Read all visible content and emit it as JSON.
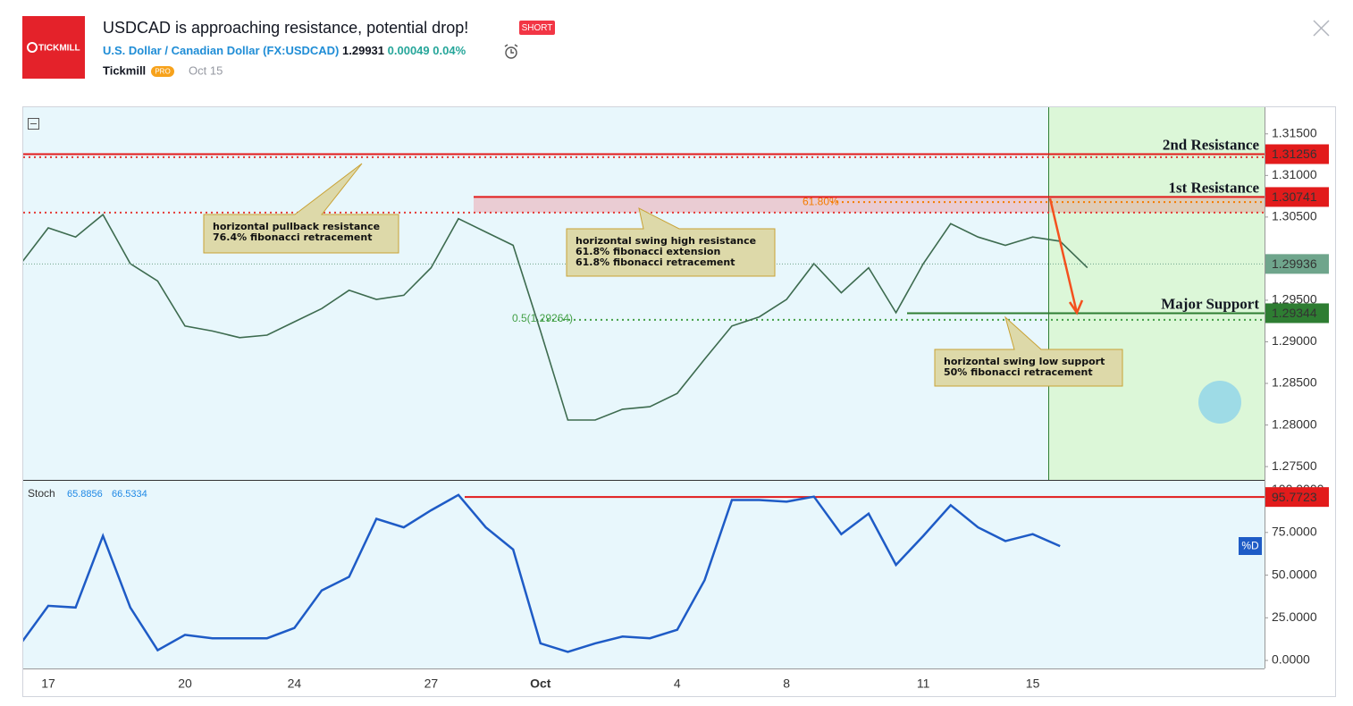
{
  "header": {
    "logo": "TICKMILL",
    "title": "USDCAD is approaching resistance, potential drop!",
    "badge": "SHORT",
    "symbol_name": "U.S. Dollar / Canadian Dollar",
    "symbol_code": "(FX:USDCAD)",
    "price": "1.29931",
    "change": "0.00049",
    "change_pct": "0.04%",
    "author": "Tickmill",
    "author_badge": "PRO",
    "date": "Oct 15"
  },
  "chart_data": [
    {
      "type": "line",
      "color": "#3d6b4f",
      "categories": [
        null,
        "17",
        null,
        null,
        null,
        null,
        "20",
        null,
        null,
        null,
        "24",
        null,
        null,
        null,
        null,
        "27",
        null,
        null,
        null,
        "Oct",
        null,
        null,
        null,
        null,
        "4",
        null,
        null,
        null,
        "8",
        null,
        null,
        null,
        null,
        "11",
        null,
        null,
        null,
        "15",
        null,
        null,
        null,
        null,
        null,
        null,
        null,
        null
      ],
      "values": [
        1.2994,
        1.3037,
        1.3026,
        1.3053,
        1.2994,
        1.2973,
        1.2919,
        1.2913,
        1.2905,
        1.2908,
        1.2924,
        1.294,
        1.2962,
        1.2951,
        1.2956,
        1.2989,
        1.3048,
        1.3032,
        1.3016,
        1.2913,
        1.2806,
        1.2806,
        1.2819,
        1.2822,
        1.2838,
        1.2879,
        1.2919,
        1.293,
        1.2951,
        1.2994,
        1.2959,
        1.2989,
        1.2935,
        1.2994,
        1.3042,
        1.3026,
        1.3016,
        1.3026,
        1.3021,
        1.2989,
        null,
        null,
        null,
        null,
        null,
        null
      ],
      "ylim": [
        1.2734,
        1.3182
      ],
      "yticks": [
        {
          "value": 1.315,
          "label": "1.31500"
        },
        {
          "value": 1.31,
          "label": "1.31000"
        },
        {
          "value": 1.305,
          "label": "1.30500"
        },
        {
          "value": 1.295,
          "label": "1.29500"
        },
        {
          "value": 1.29,
          "label": "1.29000"
        },
        {
          "value": 1.285,
          "label": "1.28500"
        },
        {
          "value": 1.28,
          "label": "1.28000"
        },
        {
          "value": 1.275,
          "label": "1.27500"
        }
      ],
      "levels": [
        {
          "value": 1.31256,
          "name": "2nd Resistance",
          "color": "#e21b1b"
        },
        {
          "value": 1.30741,
          "name": "1st Resistance",
          "color": "#e21b1b"
        },
        {
          "value": 1.29936,
          "color": "#6fa58c"
        },
        {
          "value": 1.29344,
          "name": "Major Support",
          "color": "#2e7d32"
        }
      ],
      "fib_lines": [
        {
          "value": 1.3122,
          "color": "#e53935"
        },
        {
          "value": 1.30554,
          "color": "#e53935"
        },
        {
          "value": 1.3068,
          "color": "#f57c00",
          "label": "61.80%"
        },
        {
          "value": 1.29264,
          "color": "#43a047",
          "label": "0.5(1.29264)"
        }
      ],
      "annotations": [
        {
          "lines": [
            "horizontal pullback resistance",
            "76.4% fibonacci retracement"
          ]
        },
        {
          "lines": [
            "horizontal swing high resistance",
            "61.8% fibonacci extension",
            "61.8% fibonacci retracement"
          ]
        },
        {
          "lines": [
            "horizontal swing low support",
            "50% fibonacci retracement"
          ]
        }
      ]
    },
    {
      "type": "line",
      "name": "Stoch",
      "color": "#1e5bc6",
      "legend_values": [
        65.8856,
        66.5334
      ],
      "badge": "%D",
      "values": [
        10,
        32,
        31,
        73,
        31,
        6,
        15,
        13,
        13,
        13,
        19,
        41,
        49,
        83,
        78,
        88,
        97,
        78,
        65,
        10,
        5,
        10,
        14,
        13,
        18,
        47,
        94,
        94,
        93,
        96,
        74,
        86,
        56,
        73,
        91,
        78,
        70,
        74,
        67,
        null,
        null,
        null,
        null,
        null,
        null,
        null
      ],
      "ylim": [
        -4.7,
        105.8
      ],
      "yticks": [
        {
          "value": 100,
          "label": "100.0000"
        },
        {
          "value": 75,
          "label": "75.0000"
        },
        {
          "value": 50,
          "label": "50.0000"
        },
        {
          "value": 25,
          "label": "25.0000"
        },
        {
          "value": 0,
          "label": "0.0000"
        }
      ],
      "level": {
        "value": 95.7723,
        "color": "#e21b1b"
      }
    }
  ]
}
